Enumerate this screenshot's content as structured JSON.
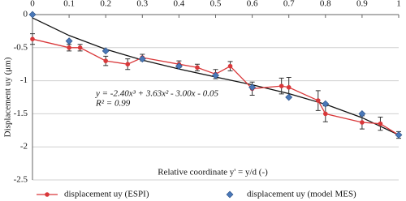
{
  "chart_data": {
    "type": "line",
    "y_label": "Displacement uy (μm)",
    "x_label": "Relative coordinate  y' = y/d  (-)",
    "equation": "y = -2.40x³ + 3.63x² - 3.00x - 0.05",
    "r_squared": "R² = 0.99",
    "xlim": [
      0,
      1
    ],
    "xticks": [
      0,
      0.1,
      0.2,
      0.3,
      0.4,
      0.5,
      0.6,
      0.7,
      0.8,
      0.9,
      1
    ],
    "ylim": [
      -2.5,
      0
    ],
    "yticks": [
      0,
      -0.5,
      -1,
      -1.5,
      -2,
      -2.5
    ],
    "grid": true,
    "legend": "bottom",
    "series": [
      {
        "name": "displacement uy (ESPI)",
        "color": "#d9383a",
        "marker": "circle",
        "x": [
          0,
          0.1,
          0.13,
          0.2,
          0.26,
          0.3,
          0.4,
          0.45,
          0.5,
          0.54,
          0.6,
          0.68,
          0.7,
          0.78,
          0.8,
          0.9,
          0.95,
          1
        ],
        "values": [
          -0.37,
          -0.5,
          -0.5,
          -0.7,
          -0.75,
          -0.65,
          -0.75,
          -0.8,
          -0.9,
          -0.78,
          -1.12,
          -1.08,
          -1.1,
          -1.3,
          -1.5,
          -1.63,
          -1.65,
          -1.82
        ],
        "errors": [
          0.08,
          0.05,
          0.05,
          0.07,
          0.08,
          0.05,
          0.05,
          0.05,
          0.07,
          0.07,
          0.1,
          0.12,
          0.15,
          0.15,
          0.12,
          0.1,
          0.1,
          0.05
        ]
      },
      {
        "name": "displacement uy (model MES)",
        "color": "#4a78b8",
        "marker": "diamond",
        "x": [
          0,
          0.1,
          0.2,
          0.3,
          0.4,
          0.5,
          0.6,
          0.7,
          0.8,
          0.9,
          1
        ],
        "values": [
          0,
          -0.4,
          -0.55,
          -0.67,
          -0.78,
          -0.92,
          -1.1,
          -1.25,
          -1.35,
          -1.5,
          -1.82
        ]
      }
    ],
    "trendline": {
      "color": "#111111",
      "x": [
        0,
        0.1,
        0.2,
        0.3,
        0.4,
        0.5,
        0.6,
        0.7,
        0.8,
        0.9,
        1
      ],
      "values": [
        -0.05,
        -0.316,
        -0.524,
        -0.688,
        -0.823,
        -0.943,
        -1.062,
        -1.195,
        -1.356,
        -1.559,
        -1.82
      ]
    }
  }
}
